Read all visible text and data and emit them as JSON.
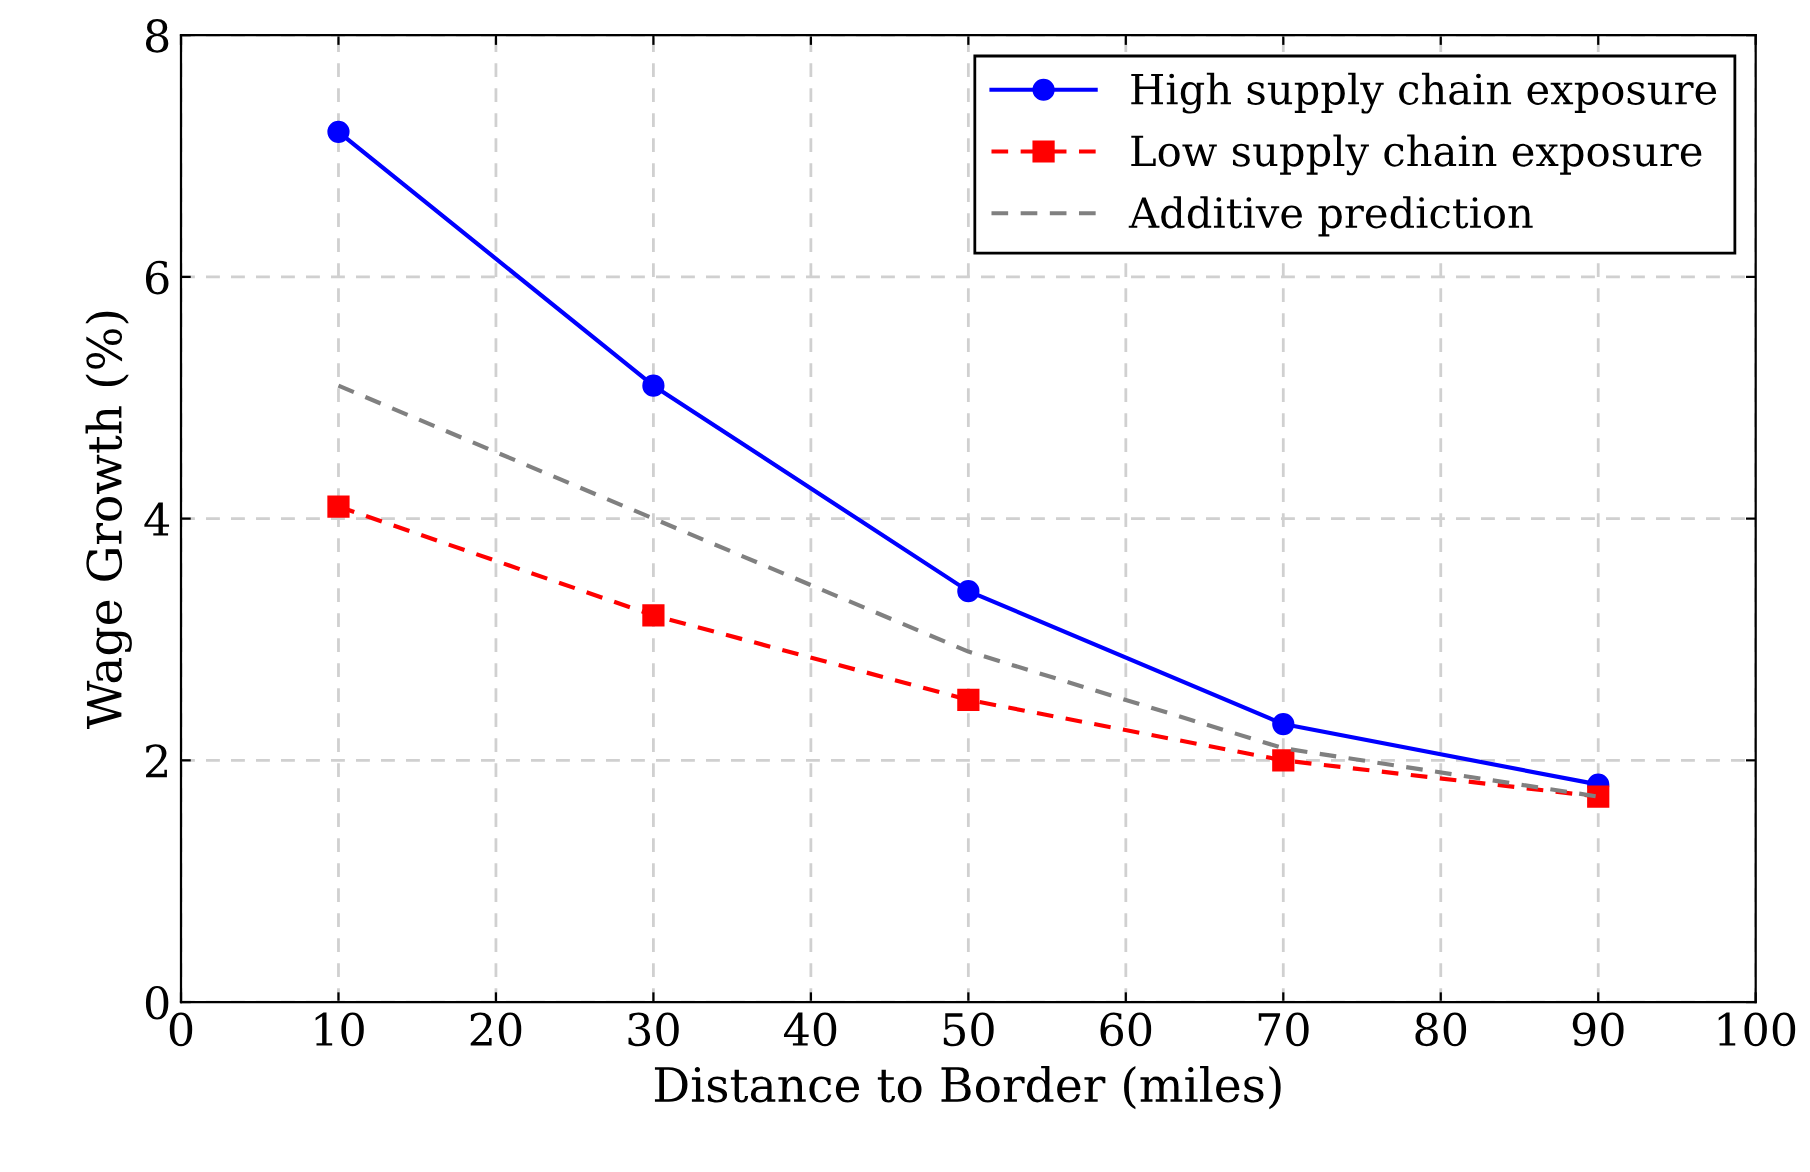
{
  "chart_data": {
    "type": "line",
    "xlabel": "Distance to Border (miles)",
    "ylabel": "Wage Growth (%)",
    "x": [
      10,
      30,
      50,
      70,
      90
    ],
    "series": [
      {
        "name": "High supply chain exposure",
        "color": "#0000ff",
        "values": [
          7.2,
          5.1,
          3.4,
          2.3,
          1.8
        ],
        "marker": "circle",
        "line_style": "solid"
      },
      {
        "name": "Low supply chain exposure",
        "color": "#ff0000",
        "values": [
          4.1,
          3.2,
          2.5,
          2.0,
          1.7
        ],
        "marker": "square",
        "line_style": "dashed"
      },
      {
        "name": "Additive prediction",
        "color": "#808080",
        "values": [
          5.1,
          4.0,
          2.9,
          2.1,
          1.7
        ],
        "marker": "none",
        "line_style": "dashed"
      }
    ],
    "xlim": [
      0,
      100
    ],
    "xticks": [
      0,
      10,
      20,
      30,
      40,
      50,
      60,
      70,
      80,
      90,
      100
    ],
    "ylim": [
      0,
      8
    ],
    "yticks": [
      0,
      2,
      4,
      6,
      8
    ],
    "grid": true,
    "legend": "top right"
  }
}
